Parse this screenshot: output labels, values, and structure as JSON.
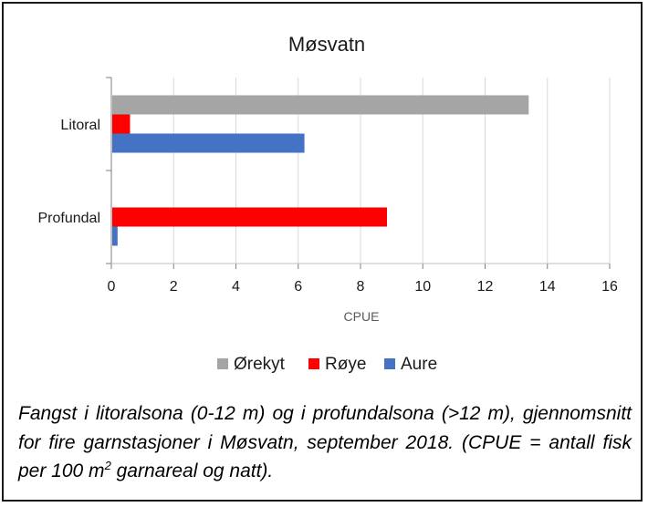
{
  "chart_data": {
    "type": "bar",
    "orientation": "horizontal",
    "title": "Møsvatn",
    "xlabel": "CPUE",
    "ylabel": "",
    "categories": [
      "Litoral",
      "Profundal"
    ],
    "series": [
      {
        "name": "Ørekyt",
        "color": "#a5a5a5",
        "values": [
          13.4,
          0
        ]
      },
      {
        "name": "Røye",
        "color": "#ff0000",
        "values": [
          0.6,
          8.85
        ]
      },
      {
        "name": "Aure",
        "color": "#4472c4",
        "values": [
          6.2,
          0.2
        ]
      }
    ],
    "xlim": [
      0,
      16
    ],
    "xticks": [
      "0",
      "2",
      "4",
      "6",
      "8",
      "10",
      "12",
      "14",
      "16"
    ],
    "grid": "vertical",
    "legend": "bottom"
  },
  "caption": {
    "text": "Fangst i litoralsona (0-12 m) og i profundalsona (>12 m), gjennomsnitt for fire garnstasjoner i Møsvatn, september 2018. (CPUE = antall fisk per 100 m",
    "sup": "2",
    "text_after": " garnareal og natt)."
  }
}
